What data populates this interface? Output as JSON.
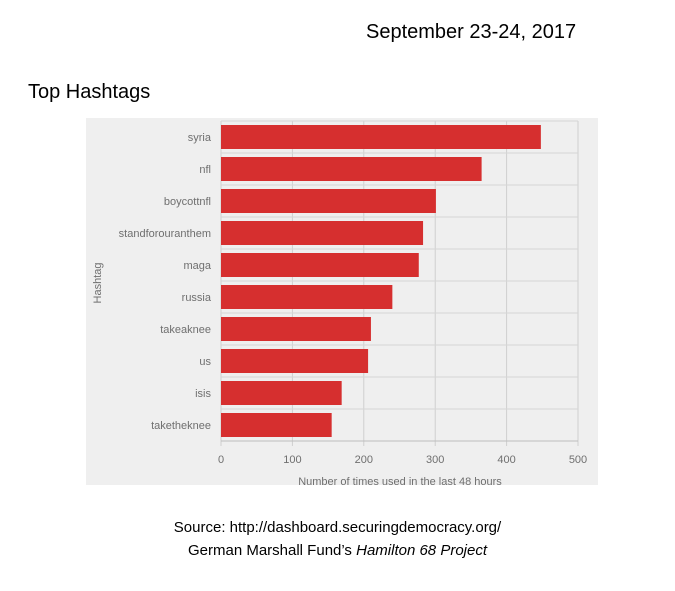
{
  "header": {
    "date": "September 23-24, 2017",
    "subtitle": "Top Hashtags"
  },
  "chart_data": {
    "type": "bar",
    "orientation": "horizontal",
    "title": "",
    "xlabel": "Number of times used in the last 48 hours",
    "ylabel": "Hashtag",
    "categories": [
      "syria",
      "nfl",
      "boycottnfl",
      "standforouranthem",
      "maga",
      "russia",
      "takeaknee",
      "us",
      "isis",
      "taketheknee"
    ],
    "values": [
      448,
      365,
      301,
      283,
      277,
      240,
      210,
      206,
      169,
      155
    ],
    "xlim": [
      0,
      500
    ],
    "xticks": [
      "0",
      "100",
      "200",
      "300",
      "400",
      "500"
    ],
    "grid": true,
    "bar_color": "#d62f2f",
    "background_color": "#efefef"
  },
  "footer": {
    "source_line": "Source: http://dashboard.securingdemocracy.org/",
    "credit_prefix": "German Marshall Fund’s ",
    "credit_italic": "Hamilton 68 Project"
  }
}
